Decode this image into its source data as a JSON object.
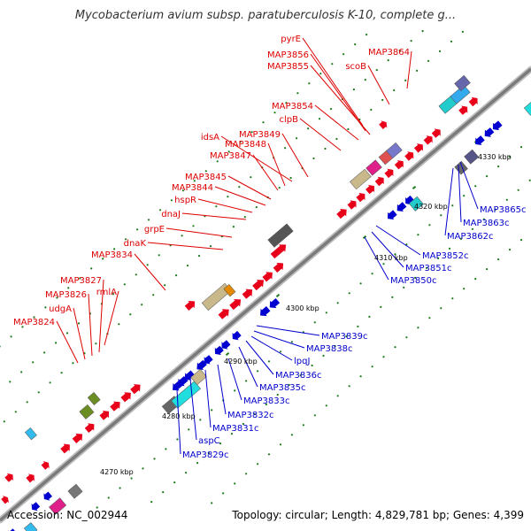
{
  "title": "Mycobacterium avium subsp. paratuberculosis K-10, complete g...",
  "footer": {
    "accession": "Accession: NC_002944",
    "summary": "Topology: circular; Length: 4,829,781 bp; Genes: 4,399"
  },
  "colors": {
    "forward_strand": "#e8001a",
    "reverse_strand": "#0000d0",
    "backbone": "#888888",
    "tick": "#1a7a1a",
    "forward_label": "#dd0000",
    "reverse_label": "#0000cc"
  },
  "scale_labels": [
    "4270 kbp",
    "4280 kbp",
    "4290 kbp",
    "4300 kbp",
    "4310 kbp",
    "4320 kbp",
    "4330 kbp"
  ],
  "forward_genes": [
    "pyrE",
    "MAP3856",
    "MAP3855",
    "MAP3864",
    "scoB",
    "MAP3854",
    "clpB",
    "MAP3849",
    "idsA",
    "MAP3848",
    "MAP3847",
    "MAP3845",
    "MAP3844",
    "hspR",
    "dnaJ",
    "grpE",
    "dnaK",
    "MAP3834",
    "MAP3827",
    "rmlA",
    "MAP3826",
    "udgA",
    "MAP3824"
  ],
  "reverse_genes": [
    "MAP3865c",
    "MAP3863c",
    "MAP3862c",
    "MAP3852c",
    "MAP3851c",
    "MAP3850c",
    "MAP3839c",
    "MAP3838c",
    "lpqJ",
    "MAP3836c",
    "MAP3835c",
    "MAP3833c",
    "MAP3832c",
    "MAP3831c",
    "aspC",
    "MAP3829c"
  ]
}
